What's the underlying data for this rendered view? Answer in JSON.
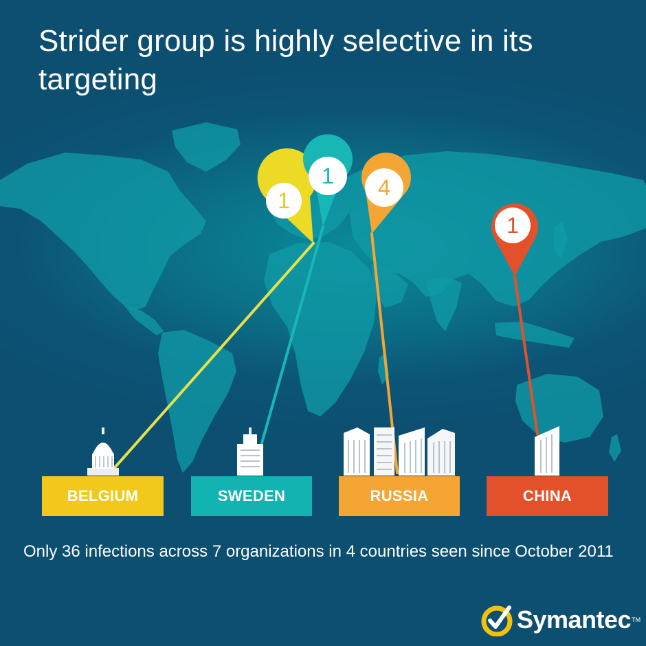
{
  "title": "Strider group is highly selective in its targeting",
  "countries": [
    {
      "name": "BELGIUM",
      "count": "1",
      "color": "#f2c81a"
    },
    {
      "name": "SWEDEN",
      "count": "1",
      "color": "#13b3b1"
    },
    {
      "name": "RUSSIA",
      "count": "4",
      "color": "#f5a533"
    },
    {
      "name": "CHINA",
      "count": "1",
      "color": "#e3512a"
    }
  ],
  "footer": {
    "part1": "Only ",
    "infections": "36",
    "part2": " infections across ",
    "organizations": "7",
    "part3": " organizations in ",
    "countries": "4",
    "part4": " countries seen since October 2011"
  },
  "logo": {
    "name": "Symantec",
    "tm": "TM",
    "icon": "checkmark-circle-icon",
    "accent": "#f4c10f"
  }
}
